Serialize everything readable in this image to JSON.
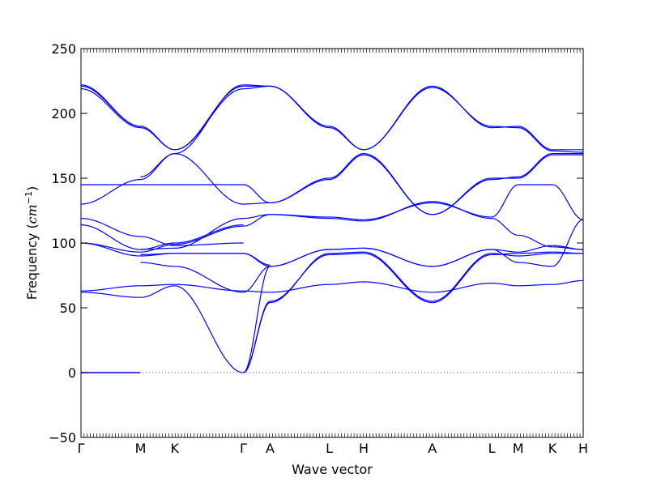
{
  "chart_data": {
    "type": "line",
    "title": "",
    "xlabel": "Wave vector",
    "ylabel_text": "Frequency (",
    "ylabel_unit": "cm",
    "ylabel_exp": "−1",
    "ylabel_close": ")",
    "ylim": [
      -50,
      250
    ],
    "yticks": [
      -50,
      0,
      50,
      100,
      150,
      200,
      250
    ],
    "grid": false,
    "legend": "none",
    "line_color": "#0000ff",
    "zero_line_color": "#555555",
    "k_points": [
      {
        "label": "Γ",
        "x": 0.0
      },
      {
        "label": "M",
        "x": 0.1185
      },
      {
        "label": "K",
        "x": 0.1866
      },
      {
        "label": "Γ",
        "x": 0.3234
      },
      {
        "label": "A",
        "x": 0.3765
      },
      {
        "label": "L",
        "x": 0.4945
      },
      {
        "label": "H",
        "x": 0.5629
      },
      {
        "label": "A",
        "x": 0.6995
      },
      {
        "label": "L",
        "x": 0.8178
      },
      {
        "label": "M",
        "x": 0.8705
      },
      {
        "label": "K",
        "x": 0.9388
      },
      {
        "label": "H",
        "x": 1.0
      }
    ],
    "segments": [
      {
        "from": "Γ",
        "to": "M",
        "branches": [
          [
            0,
            0
          ],
          [
            0,
            0
          ],
          [
            0,
            0
          ],
          [
            63,
            67
          ],
          [
            62,
            58
          ],
          [
            100,
            90
          ],
          [
            100,
            93
          ],
          [
            114,
            95
          ],
          [
            119,
            105
          ],
          [
            130,
            149
          ],
          [
            145,
            145
          ],
          [
            219,
            189
          ],
          [
            221,
            190
          ],
          [
            222,
            190
          ]
        ]
      },
      {
        "from": "M",
        "to": "K",
        "branches": [
          [
            90,
            92
          ],
          [
            91,
            92
          ],
          [
            85,
            82
          ],
          [
            67,
            68
          ],
          [
            58,
            67
          ],
          [
            93,
            99
          ],
          [
            95,
            100
          ],
          [
            95,
            96
          ],
          [
            105,
            98
          ],
          [
            149,
            169
          ],
          [
            145,
            145
          ],
          [
            189,
            172
          ],
          [
            190,
            172
          ],
          [
            151,
            169
          ]
        ]
      },
      {
        "from": "K",
        "to": "Γ",
        "branches": [
          [
            92,
            92
          ],
          [
            92,
            92
          ],
          [
            82,
            62
          ],
          [
            68,
            63
          ],
          [
            67,
            0
          ],
          [
            99,
            113
          ],
          [
            100,
            114
          ],
          [
            96,
            119
          ],
          [
            98,
            100
          ],
          [
            169,
            130
          ],
          [
            145,
            145
          ],
          [
            172,
            219
          ],
          [
            172,
            221
          ],
          [
            169,
            222
          ]
        ]
      },
      {
        "from": "Γ",
        "to": "A",
        "branches": [
          [
            0,
            55
          ],
          [
            0,
            54
          ],
          [
            0,
            82
          ],
          [
            63,
            62
          ],
          [
            62,
            82
          ],
          [
            92,
            83
          ],
          [
            92,
            82
          ],
          [
            113,
            122
          ],
          [
            119,
            122
          ],
          [
            130,
            131
          ],
          [
            145,
            131
          ],
          [
            219,
            221
          ],
          [
            221,
            221
          ],
          [
            222,
            221
          ]
        ]
      },
      {
        "from": "A",
        "to": "L",
        "branches": [
          [
            55,
            91
          ],
          [
            54,
            92
          ],
          [
            82,
            95
          ],
          [
            62,
            68
          ],
          [
            82,
            95
          ],
          [
            122,
            120
          ],
          [
            122,
            119
          ],
          [
            131,
            150
          ],
          [
            131,
            149
          ],
          [
            221,
            189
          ],
          [
            221,
            190
          ]
        ]
      },
      {
        "from": "L",
        "to": "H",
        "branches": [
          [
            91,
            92
          ],
          [
            92,
            93
          ],
          [
            95,
            96
          ],
          [
            68,
            70
          ],
          [
            95,
            96
          ],
          [
            120,
            118
          ],
          [
            119,
            117
          ],
          [
            150,
            169
          ],
          [
            149,
            168
          ],
          [
            189,
            172
          ],
          [
            190,
            172
          ]
        ]
      },
      {
        "from": "H",
        "to": "A",
        "branches": [
          [
            92,
            54
          ],
          [
            93,
            55
          ],
          [
            96,
            82
          ],
          [
            70,
            62
          ],
          [
            96,
            82
          ],
          [
            118,
            131
          ],
          [
            117,
            132
          ],
          [
            169,
            122
          ],
          [
            168,
            122
          ],
          [
            172,
            221
          ],
          [
            172,
            220
          ]
        ]
      },
      {
        "from": "A",
        "to": "L",
        "branches": [
          [
            54,
            91
          ],
          [
            55,
            92
          ],
          [
            82,
            95
          ],
          [
            62,
            69
          ],
          [
            82,
            95
          ],
          [
            131,
            120
          ],
          [
            132,
            119
          ],
          [
            122,
            149
          ],
          [
            122,
            150
          ],
          [
            221,
            189
          ],
          [
            220,
            190
          ]
        ]
      },
      {
        "from": "L",
        "to": "M",
        "branches": [
          [
            91,
            92
          ],
          [
            92,
            90
          ],
          [
            95,
            93
          ],
          [
            69,
            67
          ],
          [
            95,
            85
          ],
          [
            120,
            145
          ],
          [
            119,
            106
          ],
          [
            149,
            151
          ],
          [
            150,
            150
          ],
          [
            189,
            190
          ],
          [
            190,
            189
          ]
        ]
      },
      {
        "from": "M",
        "to": "K",
        "branches": [
          [
            92,
            93
          ],
          [
            90,
            92
          ],
          [
            93,
            98
          ],
          [
            67,
            68
          ],
          [
            85,
            82
          ],
          [
            145,
            145
          ],
          [
            106,
            97
          ],
          [
            151,
            169
          ],
          [
            150,
            168
          ],
          [
            190,
            172
          ],
          [
            189,
            171
          ]
        ]
      },
      {
        "from": "K",
        "to": "H",
        "branches": [
          [
            93,
            92
          ],
          [
            92,
            92
          ],
          [
            98,
            95
          ],
          [
            68,
            71
          ],
          [
            82,
            118
          ],
          [
            145,
            118
          ],
          [
            97,
            95
          ],
          [
            169,
            169
          ],
          [
            168,
            168
          ],
          [
            172,
            172
          ],
          [
            171,
            170
          ]
        ]
      }
    ]
  }
}
